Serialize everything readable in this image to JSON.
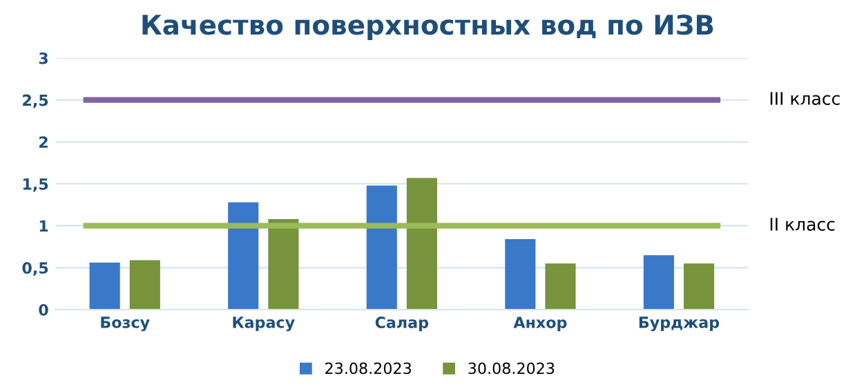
{
  "chart_data": {
    "type": "bar",
    "title": "Качество поверхностных вод по ИЗВ",
    "categories": [
      "Бозсу",
      "Карасу",
      "Салар",
      "Анхор",
      "Бурджар"
    ],
    "series": [
      {
        "name": "23.08.2023",
        "color": "#3a78c9",
        "values": [
          0.56,
          1.28,
          1.48,
          0.84,
          0.65
        ]
      },
      {
        "name": "30.08.2023",
        "color": "#77933c",
        "values": [
          0.59,
          1.08,
          1.57,
          0.55,
          0.55
        ]
      }
    ],
    "ylim": [
      0,
      3
    ],
    "yticks": [
      0,
      {
        "value": 0.5,
        "label": "0,5"
      },
      1,
      {
        "value": 1.5,
        "label": "1,5"
      },
      2,
      {
        "value": 2.5,
        "label": "2,5"
      },
      3
    ],
    "ref_lines": [
      {
        "axis": "y",
        "value": 2.5,
        "label": "III класс",
        "color": "#8064a2"
      },
      {
        "axis": "y",
        "value": 1,
        "label": "II класс",
        "color": "#9bbb59"
      }
    ],
    "grid": "y",
    "legend": "bottom"
  }
}
